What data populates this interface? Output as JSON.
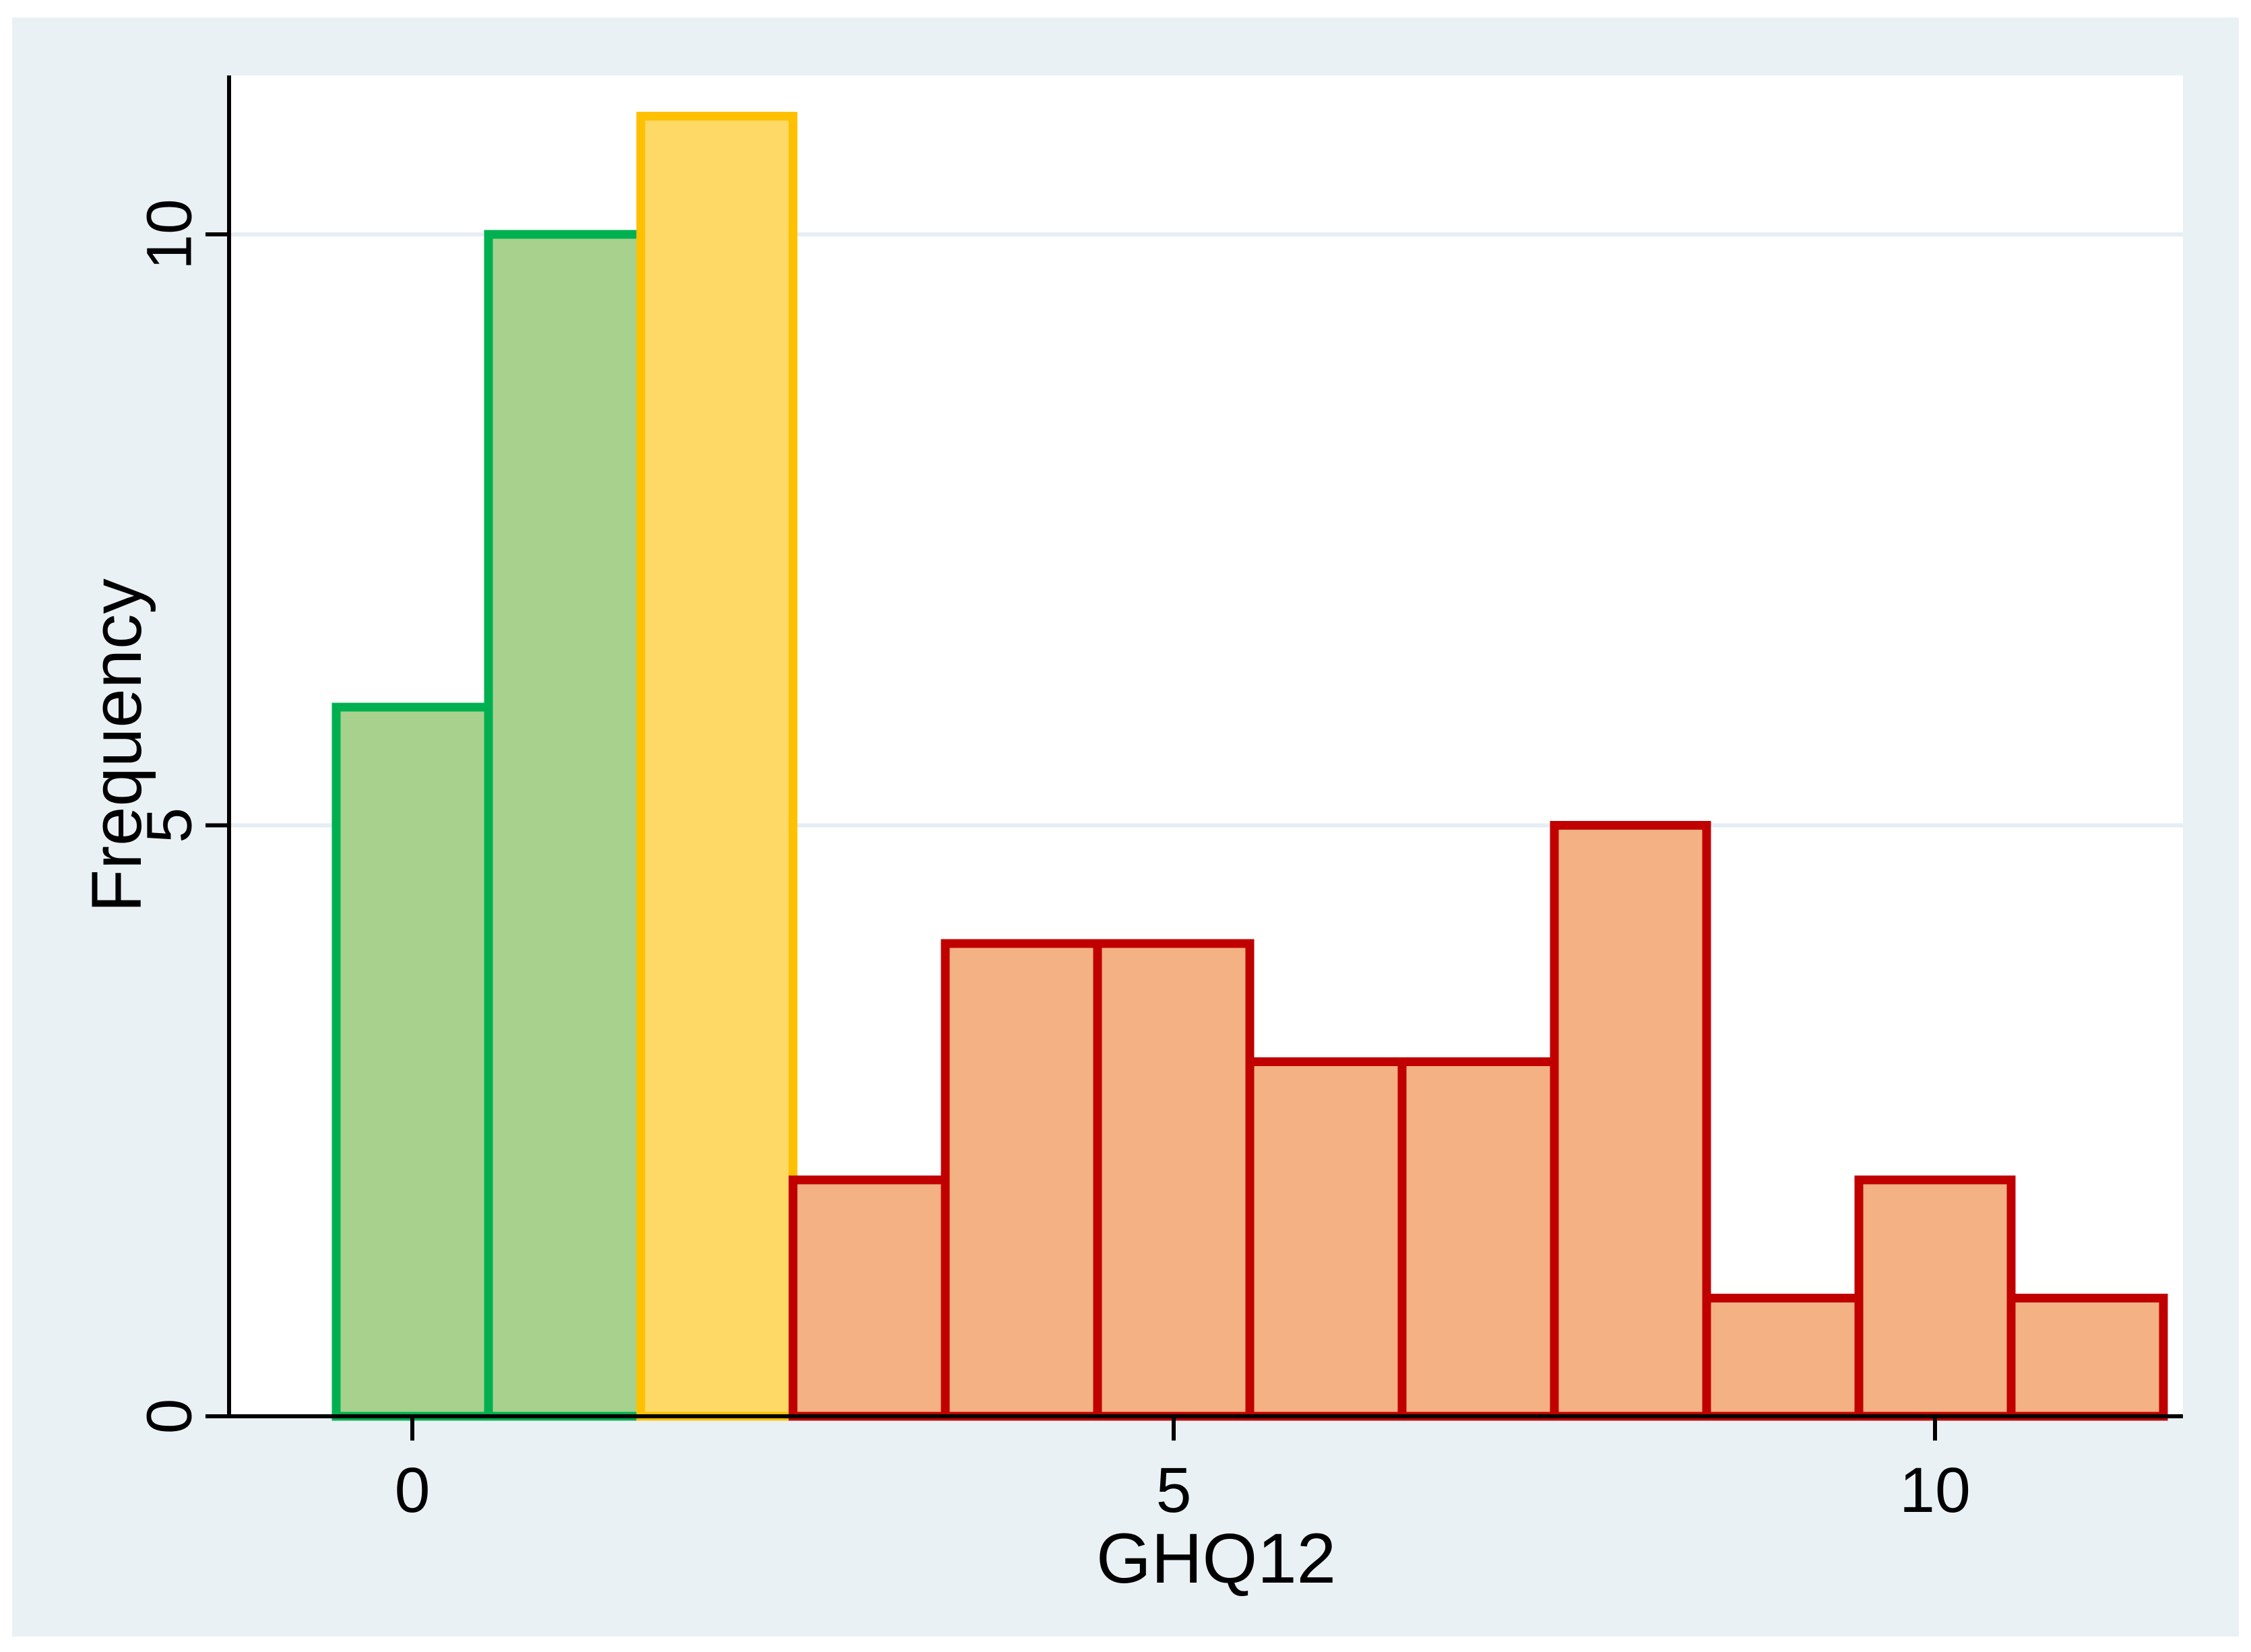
{
  "chart_data": {
    "type": "bar",
    "subtype": "histogram",
    "title": "",
    "xlabel": "GHQ12",
    "ylabel": "Frequency",
    "x": [
      0,
      1,
      2,
      3,
      4,
      5,
      6,
      7,
      8,
      9,
      10,
      11
    ],
    "frequencies": [
      6,
      10,
      11,
      2,
      4,
      4,
      3,
      3,
      5,
      1,
      2,
      1
    ],
    "bar_groups": [
      "green",
      "green",
      "yellow",
      "orange",
      "orange",
      "orange",
      "orange",
      "orange",
      "orange",
      "orange",
      "orange",
      "orange"
    ],
    "bin_width": 1,
    "x_ticks": [
      0,
      5,
      10
    ],
    "y_ticks": [
      0,
      5,
      10
    ],
    "x_tick_labels": [
      "0",
      "5",
      "10"
    ],
    "y_tick_labels": [
      "0",
      "5",
      "10"
    ],
    "xlim": [
      -1.2,
      11.7
    ],
    "ylim": [
      0,
      11.34
    ],
    "grid": "horizontal gridlines at y ticks",
    "legend": "none",
    "colors": {
      "green": {
        "fill": "#A9D18E",
        "stroke": "#00B050"
      },
      "yellow": {
        "fill": "#FFD966",
        "stroke": "#FFC000"
      },
      "orange": {
        "fill": "#F4B183",
        "stroke": "#C00000"
      },
      "background": "#EAF1F4",
      "plot_background": "#FFFFFF",
      "axis": "#000000",
      "gridline": "#E6EEF4"
    }
  }
}
